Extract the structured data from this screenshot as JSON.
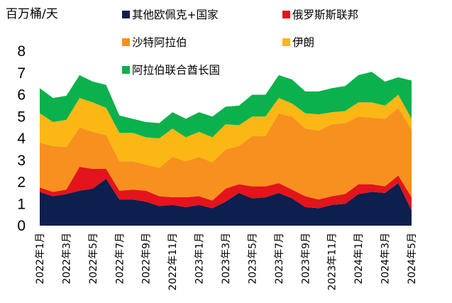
{
  "chart_data": {
    "type": "area",
    "stacked": true,
    "ylabel": "百万桶/天",
    "ylim": [
      0,
      8
    ],
    "yticks": [
      0,
      1,
      2,
      3,
      4,
      5,
      6,
      7,
      8
    ],
    "grid": false,
    "x": [
      "2022年1月",
      "2022年2月",
      "2022年3月",
      "2022年4月",
      "2022年5月",
      "2022年6月",
      "2022年7月",
      "2022年8月",
      "2022年9月",
      "2022年10月",
      "2022年11月",
      "2022年12月",
      "2023年1月",
      "2023年2月",
      "2023年3月",
      "2023年4月",
      "2023年5月",
      "2023年6月",
      "2023年7月",
      "2023年8月",
      "2023年9月",
      "2023年10月",
      "2023年11月",
      "2023年12月",
      "2024年1月",
      "2024年2月",
      "2024年3月",
      "2024年4月",
      "2024年5月"
    ],
    "xtick_labels": [
      "2022年1月",
      "2022年3月",
      "2022年5月",
      "2022年7月",
      "2022年9月",
      "2022年11月",
      "2023年1月",
      "2023年3月",
      "2023年5月",
      "2023年7月",
      "2023年9月",
      "2023年11月",
      "2024年1月",
      "2024年3月",
      "2024年5月"
    ],
    "series": [
      {
        "name": "其他欧佩克+国家",
        "color": "#0d1f4e",
        "values": [
          1.55,
          1.35,
          1.45,
          1.6,
          1.7,
          2.15,
          1.2,
          1.2,
          1.1,
          0.9,
          0.95,
          0.85,
          0.95,
          0.8,
          1.1,
          1.5,
          1.25,
          1.3,
          1.5,
          1.25,
          0.85,
          0.8,
          0.95,
          1.0,
          1.45,
          1.55,
          1.5,
          1.95,
          0.7
        ]
      },
      {
        "name": "俄罗斯斯联邦",
        "color": "#e3141c",
        "values": [
          0.2,
          0.2,
          0.2,
          1.1,
          0.9,
          0.45,
          0.4,
          0.45,
          0.5,
          0.45,
          0.35,
          0.45,
          0.4,
          0.35,
          0.6,
          0.4,
          0.55,
          0.5,
          0.45,
          0.4,
          0.5,
          0.4,
          0.4,
          0.45,
          0.45,
          0.35,
          0.3,
          0.35,
          0.6
        ]
      },
      {
        "name": "沙特阿拉伯",
        "color": "#f7901e",
        "values": [
          2.05,
          2.1,
          1.95,
          1.8,
          1.7,
          1.55,
          1.35,
          1.3,
          1.2,
          1.3,
          1.85,
          1.65,
          1.8,
          1.75,
          1.8,
          1.75,
          2.3,
          2.3,
          3.2,
          3.35,
          3.1,
          3.15,
          3.3,
          3.25,
          3.1,
          3.05,
          3.1,
          3.1,
          3.1
        ]
      },
      {
        "name": "伊朗",
        "color": "#fbb714",
        "values": [
          1.35,
          1.1,
          1.25,
          1.35,
          1.35,
          1.25,
          1.3,
          1.3,
          1.25,
          1.35,
          1.3,
          1.1,
          1.15,
          1.15,
          1.15,
          0.95,
          0.9,
          0.9,
          0.7,
          0.6,
          0.7,
          0.75,
          0.55,
          0.55,
          0.65,
          0.7,
          0.6,
          0.6,
          0.5
        ]
      },
      {
        "name": "阿拉伯联合酋长国",
        "color": "#0ab14c",
        "values": [
          1.15,
          1.1,
          1.1,
          1.05,
          0.95,
          1.05,
          0.8,
          0.65,
          0.7,
          0.7,
          0.75,
          0.85,
          0.9,
          0.95,
          0.8,
          0.9,
          1.0,
          1.0,
          1.05,
          1.1,
          1.0,
          1.05,
          1.1,
          1.15,
          1.25,
          1.4,
          1.1,
          0.8,
          1.75
        ]
      }
    ],
    "legend": {
      "placement": "top",
      "columns": 2
    }
  }
}
